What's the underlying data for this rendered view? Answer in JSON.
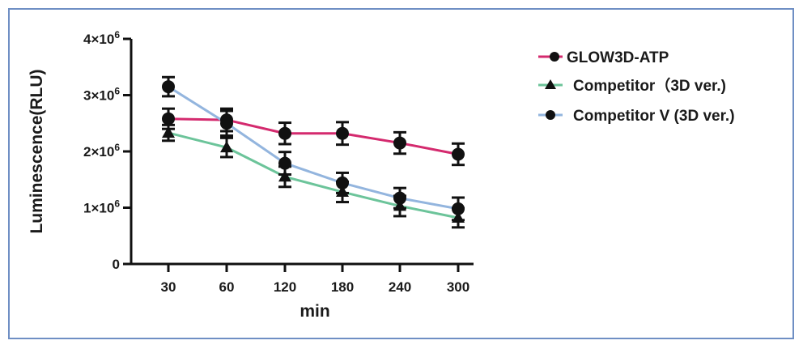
{
  "chart_data": {
    "type": "line",
    "title": "",
    "xlabel": "min",
    "ylabel": "Luminescence(RLU)",
    "categories": [
      "30",
      "60",
      "120",
      "180",
      "240",
      "300"
    ],
    "yticks": [
      {
        "value": 0,
        "label": "0"
      },
      {
        "value": 1000000,
        "label": "1×10",
        "exp": "6"
      },
      {
        "value": 2000000,
        "label": "2×10",
        "exp": "6"
      },
      {
        "value": 3000000,
        "label": "3×10",
        "exp": "6"
      },
      {
        "value": 4000000,
        "label": "4×10",
        "exp": "6"
      }
    ],
    "ylim": [
      0,
      4000000
    ],
    "grid": false,
    "legend_position": "right",
    "series": [
      {
        "name": "GLOW3D-ATP",
        "color": "#d42a6e",
        "marker": "circle",
        "values": [
          2580000,
          2560000,
          2320000,
          2320000,
          2150000,
          1950000
        ],
        "errors": [
          180000,
          200000,
          190000,
          200000,
          190000,
          190000
        ]
      },
      {
        "name": "Competitor（3D ver.)",
        "color": "#6cc49a",
        "marker": "triangle",
        "values": [
          2330000,
          2070000,
          1550000,
          1280000,
          1030000,
          820000
        ],
        "errors": [
          140000,
          170000,
          180000,
          180000,
          180000,
          170000
        ]
      },
      {
        "name": "Competitor V (3D ver.)",
        "color": "#93b5de",
        "marker": "circle",
        "values": [
          3150000,
          2500000,
          1790000,
          1440000,
          1170000,
          980000
        ],
        "errors": [
          170000,
          220000,
          200000,
          180000,
          180000,
          200000
        ]
      }
    ]
  }
}
